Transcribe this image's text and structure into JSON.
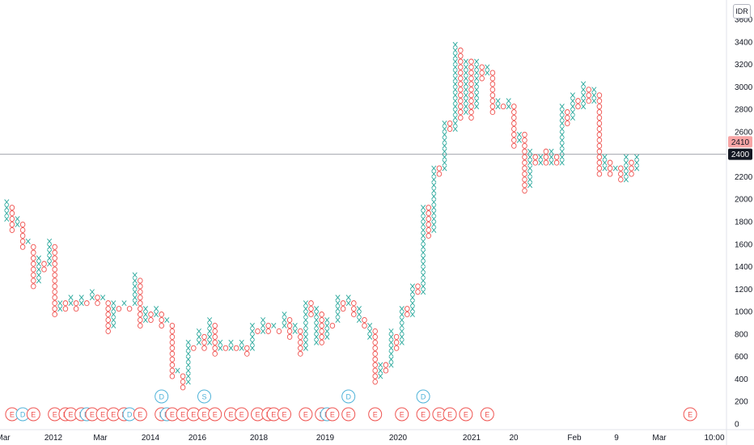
{
  "chart_data": {
    "type": "point-and-figure",
    "currency": "IDR",
    "colors": {
      "up": "#26a69a",
      "down": "#ef5350",
      "dividend": "#4fb3d9",
      "earnings": "#ef5350"
    },
    "ylim": [
      0,
      3600
    ],
    "y_ticks": [
      0,
      200,
      400,
      600,
      800,
      1000,
      1200,
      1400,
      1600,
      1800,
      2000,
      2200,
      2400,
      2600,
      2800,
      3000,
      3200,
      3400,
      3600
    ],
    "x_ticks": [
      "Mar",
      "2012",
      "Mar",
      "2014",
      "2016",
      "2018",
      "2019",
      "2020",
      "2021",
      "20",
      "Feb",
      "9",
      "Mar",
      "10:00"
    ],
    "box_size": 50,
    "columns": [
      {
        "type": "X",
        "low": 1800,
        "high": 2000
      },
      {
        "type": "O",
        "low": 1700,
        "high": 1950
      },
      {
        "type": "X",
        "low": 1750,
        "high": 1850
      },
      {
        "type": "O",
        "low": 1550,
        "high": 1800
      },
      {
        "type": "X",
        "low": 1600,
        "high": 1650
      },
      {
        "type": "O",
        "low": 1200,
        "high": 1600
      },
      {
        "type": "X",
        "low": 1250,
        "high": 1500
      },
      {
        "type": "O",
        "low": 1350,
        "high": 1450
      },
      {
        "type": "X",
        "low": 1400,
        "high": 1650
      },
      {
        "type": "O",
        "low": 950,
        "high": 1600
      },
      {
        "type": "X",
        "low": 1000,
        "high": 1100
      },
      {
        "type": "O",
        "low": 1000,
        "high": 1100
      },
      {
        "type": "X",
        "low": 1050,
        "high": 1150
      },
      {
        "type": "O",
        "low": 1000,
        "high": 1100
      },
      {
        "type": "X",
        "low": 1050,
        "high": 1150
      },
      {
        "type": "O",
        "low": 1050,
        "high": 1100
      },
      {
        "type": "X",
        "low": 1100,
        "high": 1200
      },
      {
        "type": "O",
        "low": 1050,
        "high": 1150
      },
      {
        "type": "X",
        "low": 1100,
        "high": 1150
      },
      {
        "type": "O",
        "low": 800,
        "high": 1100
      },
      {
        "type": "X",
        "low": 850,
        "high": 1100
      },
      {
        "type": "O",
        "low": 1000,
        "high": 1050
      },
      {
        "type": "X",
        "low": 1050,
        "high": 1100
      },
      {
        "type": "O",
        "low": 1000,
        "high": 1050
      },
      {
        "type": "X",
        "low": 1050,
        "high": 1350
      },
      {
        "type": "O",
        "low": 850,
        "high": 1300
      },
      {
        "type": "X",
        "low": 900,
        "high": 1050
      },
      {
        "type": "O",
        "low": 900,
        "high": 1000
      },
      {
        "type": "X",
        "low": 950,
        "high": 1050
      },
      {
        "type": "O",
        "low": 850,
        "high": 1000
      },
      {
        "type": "X",
        "low": 900,
        "high": 950
      },
      {
        "type": "O",
        "low": 400,
        "high": 900
      },
      {
        "type": "X",
        "low": 450,
        "high": 500
      },
      {
        "type": "O",
        "low": 300,
        "high": 450
      },
      {
        "type": "X",
        "low": 350,
        "high": 750
      },
      {
        "type": "O",
        "low": 650,
        "high": 700
      },
      {
        "type": "X",
        "low": 700,
        "high": 850
      },
      {
        "type": "O",
        "low": 650,
        "high": 800
      },
      {
        "type": "X",
        "low": 700,
        "high": 950
      },
      {
        "type": "O",
        "low": 600,
        "high": 900
      },
      {
        "type": "X",
        "low": 650,
        "high": 750
      },
      {
        "type": "O",
        "low": 650,
        "high": 700
      },
      {
        "type": "X",
        "low": 650,
        "high": 750
      },
      {
        "type": "O",
        "low": 650,
        "high": 700
      },
      {
        "type": "X",
        "low": 650,
        "high": 750
      },
      {
        "type": "O",
        "low": 600,
        "high": 700
      },
      {
        "type": "X",
        "low": 650,
        "high": 900
      },
      {
        "type": "O",
        "low": 800,
        "high": 850
      },
      {
        "type": "X",
        "low": 800,
        "high": 950
      },
      {
        "type": "O",
        "low": 800,
        "high": 900
      },
      {
        "type": "X",
        "low": 850,
        "high": 900
      },
      {
        "type": "O",
        "low": 800,
        "high": 850
      },
      {
        "type": "X",
        "low": 850,
        "high": 1000
      },
      {
        "type": "O",
        "low": 750,
        "high": 950
      },
      {
        "type": "X",
        "low": 800,
        "high": 900
      },
      {
        "type": "O",
        "low": 600,
        "high": 850
      },
      {
        "type": "X",
        "low": 650,
        "high": 1100
      },
      {
        "type": "O",
        "low": 950,
        "high": 1100
      },
      {
        "type": "X",
        "low": 700,
        "high": 1050
      },
      {
        "type": "O",
        "low": 700,
        "high": 1000
      },
      {
        "type": "X",
        "low": 750,
        "high": 950
      },
      {
        "type": "O",
        "low": 850,
        "high": 900
      },
      {
        "type": "X",
        "low": 900,
        "high": 1150
      },
      {
        "type": "O",
        "low": 1000,
        "high": 1100
      },
      {
        "type": "X",
        "low": 1050,
        "high": 1150
      },
      {
        "type": "O",
        "low": 950,
        "high": 1100
      },
      {
        "type": "X",
        "low": 900,
        "high": 1050
      },
      {
        "type": "O",
        "low": 850,
        "high": 950
      },
      {
        "type": "X",
        "low": 750,
        "high": 900
      },
      {
        "type": "O",
        "low": 350,
        "high": 850
      },
      {
        "type": "X",
        "low": 400,
        "high": 550
      },
      {
        "type": "O",
        "low": 450,
        "high": 550
      },
      {
        "type": "X",
        "low": 500,
        "high": 850
      },
      {
        "type": "O",
        "low": 650,
        "high": 800
      },
      {
        "type": "X",
        "low": 700,
        "high": 1050
      },
      {
        "type": "O",
        "low": 950,
        "high": 1050
      },
      {
        "type": "X",
        "low": 950,
        "high": 1250
      },
      {
        "type": "O",
        "low": 1150,
        "high": 1250
      },
      {
        "type": "X",
        "low": 1150,
        "high": 1950
      },
      {
        "type": "O",
        "low": 1650,
        "high": 1950
      },
      {
        "type": "X",
        "low": 1700,
        "high": 2300
      },
      {
        "type": "O",
        "low": 2200,
        "high": 2300
      },
      {
        "type": "X",
        "low": 2250,
        "high": 2700
      },
      {
        "type": "O",
        "low": 2600,
        "high": 2700
      },
      {
        "type": "X",
        "low": 2600,
        "high": 3400
      },
      {
        "type": "O",
        "low": 2700,
        "high": 3350
      },
      {
        "type": "X",
        "low": 2750,
        "high": 3250
      },
      {
        "type": "O",
        "low": 2700,
        "high": 3250
      },
      {
        "type": "X",
        "low": 2800,
        "high": 3250
      },
      {
        "type": "O",
        "low": 3050,
        "high": 3200
      },
      {
        "type": "X",
        "low": 3100,
        "high": 3200
      },
      {
        "type": "O",
        "low": 2750,
        "high": 3150
      },
      {
        "type": "X",
        "low": 2800,
        "high": 2900
      },
      {
        "type": "O",
        "low": 2800,
        "high": 2850
      },
      {
        "type": "X",
        "low": 2800,
        "high": 2900
      },
      {
        "type": "O",
        "low": 2450,
        "high": 2850
      },
      {
        "type": "X",
        "low": 2500,
        "high": 2600
      },
      {
        "type": "O",
        "low": 2050,
        "high": 2600
      },
      {
        "type": "X",
        "low": 2100,
        "high": 2450
      },
      {
        "type": "O",
        "low": 2300,
        "high": 2400
      },
      {
        "type": "X",
        "low": 2300,
        "high": 2400
      },
      {
        "type": "O",
        "low": 2300,
        "high": 2450
      },
      {
        "type": "X",
        "low": 2300,
        "high": 2450
      },
      {
        "type": "O",
        "low": 2300,
        "high": 2400
      },
      {
        "type": "X",
        "low": 2300,
        "high": 2850
      },
      {
        "type": "O",
        "low": 2650,
        "high": 2800
      },
      {
        "type": "X",
        "low": 2700,
        "high": 2950
      },
      {
        "type": "O",
        "low": 2800,
        "high": 2900
      },
      {
        "type": "X",
        "low": 2800,
        "high": 3050
      },
      {
        "type": "O",
        "low": 2850,
        "high": 3000
      },
      {
        "type": "X",
        "low": 2850,
        "high": 3000
      },
      {
        "type": "O",
        "low": 2200,
        "high": 2950
      },
      {
        "type": "X",
        "low": 2250,
        "high": 2400
      },
      {
        "type": "O",
        "low": 2200,
        "high": 2350
      },
      {
        "type": "X",
        "low": 2250,
        "high": 2300
      },
      {
        "type": "O",
        "low": 2150,
        "high": 2300
      },
      {
        "type": "X",
        "low": 2150,
        "high": 2400
      },
      {
        "type": "O",
        "low": 2200,
        "high": 2350
      },
      {
        "type": "X",
        "low": 2250,
        "high": 2400
      }
    ],
    "price_labels": [
      {
        "value": "2410",
        "price": 2410,
        "style": "highlight"
      },
      {
        "value": "2400",
        "price": 2400,
        "style": "current"
      }
    ],
    "current_price": 2400,
    "events": [
      {
        "label": "E",
        "type": "earnings",
        "col": 1
      },
      {
        "label": "D",
        "type": "dividend",
        "col": 3
      },
      {
        "label": "E",
        "type": "earnings",
        "col": 5
      },
      {
        "label": "E",
        "type": "earnings",
        "col": 9
      },
      {
        "label": "E",
        "type": "earnings",
        "col": 11
      },
      {
        "label": "E",
        "type": "earnings",
        "col": 12
      },
      {
        "label": "E",
        "type": "earnings",
        "col": 14
      },
      {
        "label": "D",
        "type": "dividend",
        "col": 15
      },
      {
        "label": "E",
        "type": "earnings",
        "col": 16
      },
      {
        "label": "E",
        "type": "earnings",
        "col": 18
      },
      {
        "label": "E",
        "type": "earnings",
        "col": 20
      },
      {
        "label": "E",
        "type": "earnings",
        "col": 22
      },
      {
        "label": "D",
        "type": "dividend",
        "col": 23
      },
      {
        "label": "E",
        "type": "earnings",
        "col": 25
      },
      {
        "label": "E",
        "type": "earnings",
        "col": 29
      },
      {
        "label": "D",
        "type": "dividend",
        "col": 30
      },
      {
        "label": "E",
        "type": "earnings",
        "col": 31
      },
      {
        "label": "E",
        "type": "earnings",
        "col": 33
      },
      {
        "label": "E",
        "type": "earnings",
        "col": 35
      },
      {
        "label": "E",
        "type": "earnings",
        "col": 37
      },
      {
        "label": "E",
        "type": "earnings",
        "col": 39
      },
      {
        "label": "E",
        "type": "earnings",
        "col": 42
      },
      {
        "label": "E",
        "type": "earnings",
        "col": 44
      },
      {
        "label": "E",
        "type": "earnings",
        "col": 47
      },
      {
        "label": "E",
        "type": "earnings",
        "col": 49
      },
      {
        "label": "E",
        "type": "earnings",
        "col": 50
      },
      {
        "label": "E",
        "type": "earnings",
        "col": 52
      },
      {
        "label": "E",
        "type": "earnings",
        "col": 56
      },
      {
        "label": "E",
        "type": "earnings",
        "col": 59
      },
      {
        "label": "D",
        "type": "dividend",
        "col": 60
      },
      {
        "label": "E",
        "type": "earnings",
        "col": 61
      },
      {
        "label": "E",
        "type": "earnings",
        "col": 64
      },
      {
        "label": "E",
        "type": "earnings",
        "col": 69
      },
      {
        "label": "E",
        "type": "earnings",
        "col": 74
      },
      {
        "label": "E",
        "type": "earnings",
        "col": 78
      },
      {
        "label": "E",
        "type": "earnings",
        "col": 81
      },
      {
        "label": "E",
        "type": "earnings",
        "col": 83
      },
      {
        "label": "E",
        "type": "earnings",
        "col": 86
      },
      {
        "label": "E",
        "type": "earnings",
        "col": 90
      },
      {
        "label": "E",
        "type": "earnings",
        "col": 128
      }
    ],
    "high_events": [
      {
        "label": "D",
        "type": "dividend",
        "col": 29
      },
      {
        "label": "S",
        "type": "dividend",
        "col": 37
      },
      {
        "label": "D",
        "type": "dividend",
        "col": 64
      },
      {
        "label": "D",
        "type": "dividend",
        "col": 78
      }
    ]
  }
}
